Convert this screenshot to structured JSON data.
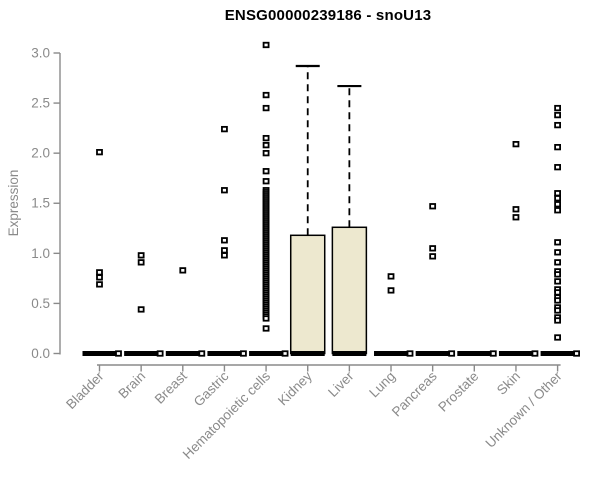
{
  "chart_data": {
    "type": "boxplot",
    "title": "ENSG00000239186 - snoU13",
    "ylabel": "Expression",
    "ylim": [
      0.0,
      3.0
    ],
    "ytick_labels": [
      "0.0",
      "0.5",
      "1.0",
      "1.5",
      "2.0",
      "2.5",
      "3.0"
    ],
    "grid": false,
    "legend": "none",
    "categories": [
      "Bladder",
      "Brain",
      "Breast",
      "Gastric",
      "Hematopoietic cells",
      "Kidney",
      "Liver",
      "Lung",
      "Pancreas",
      "Prostate",
      "Skin",
      "Unknown / Other"
    ],
    "groups": [
      {
        "category": "Bladder",
        "median": 0.0,
        "q1": 0.0,
        "q3": 0.0,
        "whisker_low": 0.0,
        "whisker_high": 0.0,
        "points": [
          2.01,
          0.81,
          0.76,
          0.69,
          0.0
        ]
      },
      {
        "category": "Brain",
        "median": 0.0,
        "q1": 0.0,
        "q3": 0.0,
        "whisker_low": 0.0,
        "whisker_high": 0.0,
        "points": [
          0.98,
          0.91,
          0.44,
          0.0
        ]
      },
      {
        "category": "Breast",
        "median": 0.0,
        "q1": 0.0,
        "q3": 0.0,
        "whisker_low": 0.0,
        "whisker_high": 0.0,
        "points": [
          0.83,
          0.0
        ]
      },
      {
        "category": "Gastric",
        "median": 0.0,
        "q1": 0.0,
        "q3": 0.0,
        "whisker_low": 0.0,
        "whisker_high": 0.0,
        "points": [
          2.24,
          1.63,
          1.13,
          1.03,
          0.98,
          0.0
        ]
      },
      {
        "category": "Hematopoietic cells",
        "median": 0.0,
        "q1": 0.0,
        "q3": 0.0,
        "whisker_low": 0.0,
        "whisker_high": 0.0,
        "points": [
          3.08,
          2.58,
          2.45,
          2.15,
          2.08,
          2.0,
          1.82,
          1.72,
          1.63,
          1.61,
          1.59,
          1.57,
          1.55,
          1.53,
          1.51,
          1.49,
          1.47,
          1.45,
          1.43,
          1.41,
          1.39,
          1.37,
          1.35,
          1.33,
          1.31,
          1.29,
          1.27,
          1.25,
          1.23,
          1.21,
          1.19,
          1.17,
          1.15,
          1.13,
          1.11,
          1.09,
          1.07,
          1.05,
          1.03,
          1.01,
          0.99,
          0.97,
          0.95,
          0.93,
          0.91,
          0.89,
          0.87,
          0.85,
          0.83,
          0.81,
          0.79,
          0.77,
          0.75,
          0.73,
          0.71,
          0.69,
          0.67,
          0.65,
          0.63,
          0.61,
          0.59,
          0.57,
          0.55,
          0.53,
          0.51,
          0.49,
          0.47,
          0.45,
          0.43,
          0.41,
          0.39,
          0.37,
          0.35,
          0.25,
          0.0
        ]
      },
      {
        "category": "Kidney",
        "median": 0.0,
        "q1": 0.0,
        "q3": 1.18,
        "whisker_low": 0.0,
        "whisker_high": 2.87,
        "points": []
      },
      {
        "category": "Liver",
        "median": 0.0,
        "q1": 0.0,
        "q3": 1.26,
        "whisker_low": 0.0,
        "whisker_high": 2.67,
        "points": []
      },
      {
        "category": "Lung",
        "median": 0.0,
        "q1": 0.0,
        "q3": 0.0,
        "whisker_low": 0.0,
        "whisker_high": 0.0,
        "points": [
          0.77,
          0.63,
          0.0
        ]
      },
      {
        "category": "Pancreas",
        "median": 0.0,
        "q1": 0.0,
        "q3": 0.0,
        "whisker_low": 0.0,
        "whisker_high": 0.0,
        "points": [
          1.47,
          1.05,
          0.97,
          0.0
        ]
      },
      {
        "category": "Prostate",
        "median": 0.0,
        "q1": 0.0,
        "q3": 0.0,
        "whisker_low": 0.0,
        "whisker_high": 0.0,
        "points": [
          0.0
        ]
      },
      {
        "category": "Skin",
        "median": 0.0,
        "q1": 0.0,
        "q3": 0.0,
        "whisker_low": 0.0,
        "whisker_high": 0.0,
        "points": [
          2.09,
          1.44,
          1.36,
          0.0
        ]
      },
      {
        "category": "Unknown / Other",
        "median": 0.0,
        "q1": 0.0,
        "q3": 0.0,
        "whisker_low": 0.0,
        "whisker_high": 0.0,
        "points": [
          2.45,
          2.38,
          2.28,
          2.06,
          1.86,
          1.6,
          1.55,
          1.49,
          1.43,
          1.11,
          1.01,
          0.91,
          0.82,
          0.79,
          0.72,
          0.64,
          0.61,
          0.56,
          0.53,
          0.46,
          0.43,
          0.36,
          0.33,
          0.16,
          0.0
        ]
      }
    ],
    "colors": {
      "box_fill": "#EDE8CF",
      "box_stroke": "#000000",
      "median": "#000000",
      "point": "#000000",
      "axis": "#8a8a8a",
      "tick_label": "#8a8a8a",
      "title": "#000000"
    }
  }
}
